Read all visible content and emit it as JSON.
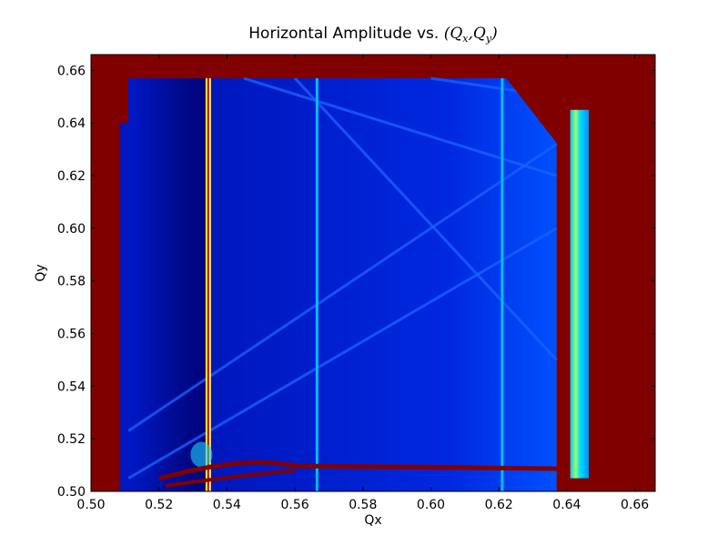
{
  "chart_data": {
    "type": "heatmap",
    "title_text": "Horizontal Amplitude vs. ",
    "title_math": {
      "open": "(",
      "q1": "Q",
      "s1": "x",
      "sep": ",",
      "q2": "Q",
      "s2": "y",
      "close": ")"
    },
    "xlabel": "Qx",
    "ylabel": "Qy",
    "xlim": [
      0.5,
      0.666
    ],
    "ylim": [
      0.5,
      0.666
    ],
    "xticks": [
      "0.50",
      "0.52",
      "0.54",
      "0.56",
      "0.58",
      "0.60",
      "0.62",
      "0.64",
      "0.66"
    ],
    "yticks": [
      "0.50",
      "0.52",
      "0.54",
      "0.56",
      "0.58",
      "0.60",
      "0.62",
      "0.64",
      "0.66"
    ],
    "grid": false,
    "colormap": "jet",
    "colors": {
      "saturated": "#800000",
      "low": "#0000a0",
      "mid": "#0040ff",
      "line": "#00c0ff",
      "hot": "#ffff00"
    },
    "regions": {
      "stable_region": {
        "qx": [
          0.511,
          0.637
        ],
        "qy": [
          0.5,
          0.657
        ]
      },
      "stable_left_strip": {
        "qx": [
          0.5085,
          0.511
        ],
        "qy": [
          0.5,
          0.64
        ]
      },
      "dark_band": {
        "qx": [
          0.511,
          0.534
        ]
      },
      "corner_cut": [
        [
          0.622,
          0.657
        ],
        [
          0.637,
          0.632
        ]
      ],
      "right_strip": {
        "qx": [
          0.641,
          0.6465
        ],
        "qy": [
          0.505,
          0.645
        ]
      },
      "resonance_verticals": [
        {
          "qx": 0.5345,
          "kind": "hot"
        },
        {
          "qx": 0.5665,
          "kind": "line"
        },
        {
          "qx": 0.621,
          "kind": "line"
        }
      ],
      "resonance_diagonals": [
        [
          [
            0.511,
            0.523
          ],
          [
            0.637,
            0.632
          ]
        ],
        [
          [
            0.545,
            0.657
          ],
          [
            0.637,
            0.62
          ]
        ],
        [
          [
            0.56,
            0.657
          ],
          [
            0.637,
            0.55
          ]
        ],
        [
          [
            0.511,
            0.505
          ],
          [
            0.637,
            0.6
          ]
        ],
        [
          [
            0.6,
            0.657
          ],
          [
            0.637,
            0.65
          ]
        ]
      ],
      "unstable_band_qy": 0.509
    }
  }
}
